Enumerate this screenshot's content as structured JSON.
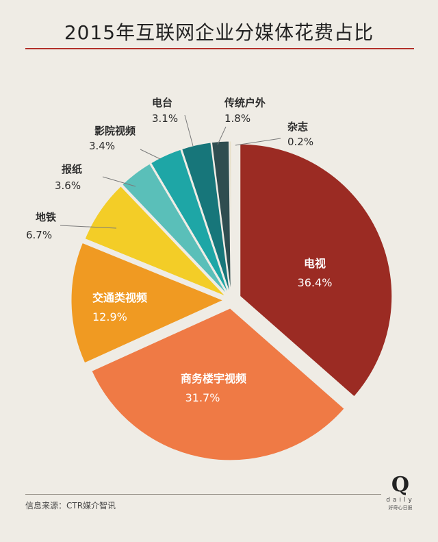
{
  "title": "2015年互联网企业分媒体花费占比",
  "source": "信息来源：CTR媒介智讯",
  "logo": {
    "letter": "Q",
    "word": "daily",
    "sub": "好奇心日报"
  },
  "colors": {
    "title_rule": "#b2302a",
    "inside_label": "#ffffff",
    "outside_label": "#2b2b2b",
    "leader": "#7a7a7a"
  },
  "chart_data": {
    "type": "pie",
    "title": "2015年互联网企业分媒体花费占比",
    "unit": "%",
    "start": "12 o'clock, clockwise",
    "slices": [
      {
        "label": "电视",
        "value": 36.4,
        "display": "36.4%",
        "color": "#9b2b23",
        "label_pos": "inside"
      },
      {
        "label": "商务楼宇视频",
        "value": 31.7,
        "display": "31.7%",
        "color": "#ef7a45",
        "label_pos": "inside"
      },
      {
        "label": "交通类视频",
        "value": 12.9,
        "display": "12.9%",
        "color": "#f09a22",
        "label_pos": "inside"
      },
      {
        "label": "地铁",
        "value": 6.7,
        "display": "6.7%",
        "color": "#f3cd27",
        "label_pos": "outside"
      },
      {
        "label": "报纸",
        "value": 3.6,
        "display": "3.6%",
        "color": "#5abfb9",
        "label_pos": "outside"
      },
      {
        "label": "影院视频",
        "value": 3.4,
        "display": "3.4%",
        "color": "#1ea6a6",
        "label_pos": "outside"
      },
      {
        "label": "电台",
        "value": 3.1,
        "display": "3.1%",
        "color": "#17767a",
        "label_pos": "outside"
      },
      {
        "label": "传统户外",
        "value": 1.8,
        "display": "1.8%",
        "color": "#2f4d50",
        "label_pos": "outside"
      },
      {
        "label": "杂志",
        "value": 0.2,
        "display": "0.2%",
        "color": "#e8e0c8",
        "label_pos": "outside"
      }
    ]
  }
}
